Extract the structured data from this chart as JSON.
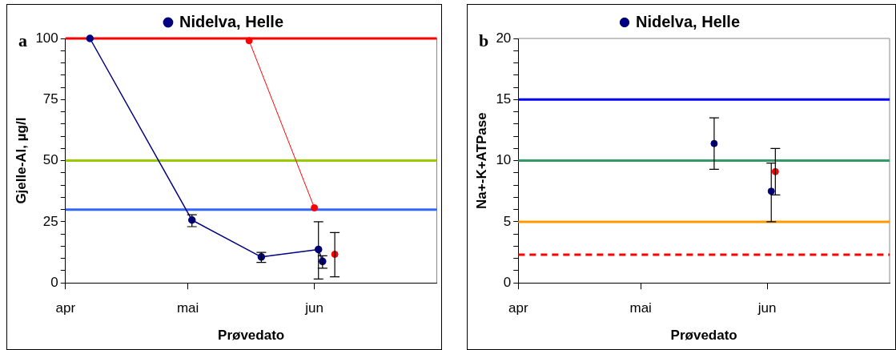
{
  "chart_data": [
    {
      "type": "line",
      "xlabel": "Prøvedato",
      "ylabel": "Gjelle-Al, µg/l",
      "annotations": [
        "a"
      ],
      "legend": "top",
      "grid": false,
      "marker": "circle",
      "xlim": [
        "--04-01",
        "--07-01"
      ],
      "xticks": [
        {
          "value": "--04-01",
          "label": "apr"
        },
        {
          "value": "--05-01",
          "label": "mai"
        },
        {
          "value": "--06-01",
          "label": "jun"
        }
      ],
      "ylim": [
        0,
        100
      ],
      "yticks": [
        0,
        {
          "value": 5,
          "label": null
        },
        {
          "value": 10,
          "label": null
        },
        {
          "value": 15,
          "label": null
        },
        {
          "value": 20,
          "label": null
        },
        25,
        {
          "value": 30,
          "label": null
        },
        {
          "value": 35,
          "label": null
        },
        {
          "value": 40,
          "label": null
        },
        {
          "value": 45,
          "label": null
        },
        50,
        {
          "value": 55,
          "label": null
        },
        {
          "value": 60,
          "label": null
        },
        {
          "value": 65,
          "label": null
        },
        {
          "value": 70,
          "label": null
        },
        75,
        {
          "value": 80,
          "label": null
        },
        {
          "value": 85,
          "label": null
        },
        {
          "value": 90,
          "label": null
        },
        {
          "value": 95,
          "label": null
        },
        100
      ],
      "ref_lines": [
        {
          "axis": "y",
          "value": 100,
          "color": "#ff0000"
        },
        {
          "axis": "y",
          "value": 50,
          "color": "#99cc00"
        },
        {
          "axis": "y",
          "value": 30,
          "color": "#3366ff"
        }
      ],
      "series": [
        {
          "name": "Nidelva, Helle",
          "color": "#000080",
          "x": [
            "--04-07",
            "--05-02",
            "--05-19",
            "--06-02",
            "--06-03"
          ],
          "values": [
            100,
            25.7,
            10.6,
            13.7,
            8.8
          ],
          "errors": [
            null,
            [
              23.0,
              27.9
            ],
            [
              8.4,
              12.5
            ],
            [
              1.6,
              25.0
            ],
            [
              6.0,
              11.1
            ]
          ]
        },
        {
          "color": "#ff0000",
          "x": [
            "--05-16",
            "--06-01"
          ],
          "values": [
            99.1,
            30.7
          ]
        },
        {
          "type": "scatter",
          "color": "#ff0000",
          "x": [
            "--06-06"
          ],
          "values": [
            11.7
          ],
          "errors": [
            [
              2.5,
              20.6
            ]
          ]
        }
      ]
    },
    {
      "type": "scatter",
      "xlabel": "Prøvedato",
      "ylabel": "Na+-K+ATPase",
      "annotations": [
        "b"
      ],
      "legend": "top",
      "grid": false,
      "marker": "circle",
      "xlim": [
        "--04-01",
        "--07-01"
      ],
      "xticks": [
        {
          "value": "--04-01",
          "label": "apr"
        },
        {
          "value": "--05-01",
          "label": "mai"
        },
        {
          "value": "--06-01",
          "label": "jun"
        }
      ],
      "ylim": [
        0,
        20
      ],
      "yticks": [
        0,
        {
          "value": 1,
          "label": null
        },
        {
          "value": 2,
          "label": null
        },
        {
          "value": 3,
          "label": null
        },
        {
          "value": 4,
          "label": null
        },
        5,
        {
          "value": 6,
          "label": null
        },
        {
          "value": 7,
          "label": null
        },
        {
          "value": 8,
          "label": null
        },
        {
          "value": 9,
          "label": null
        },
        10,
        {
          "value": 11,
          "label": null
        },
        {
          "value": 12,
          "label": null
        },
        {
          "value": 13,
          "label": null
        },
        {
          "value": 14,
          "label": null
        },
        15,
        {
          "value": 16,
          "label": null
        },
        {
          "value": 17,
          "label": null
        },
        {
          "value": 18,
          "label": null
        },
        {
          "value": 19,
          "label": null
        },
        20
      ],
      "ref_lines": [
        {
          "axis": "y",
          "value": 15,
          "color": "#0000ff"
        },
        {
          "axis": "y",
          "value": 10,
          "color": "#339966"
        },
        {
          "axis": "y",
          "value": 5,
          "color": "#ff9900"
        },
        {
          "axis": "y",
          "value": 2.3,
          "color": "#ff0000",
          "line_style": "dashed"
        }
      ],
      "series": [
        {
          "name": "Nidelva, Helle",
          "color": "#000080",
          "x": [
            "--05-19",
            "--06-02"
          ],
          "values": [
            11.4,
            7.5
          ],
          "errors": [
            [
              9.3,
              13.5
            ],
            [
              5.0,
              9.8
            ]
          ]
        },
        {
          "color": "#ff0000",
          "x": [
            "--06-03"
          ],
          "values": [
            9.1
          ],
          "errors": [
            [
              7.2,
              11.0
            ]
          ]
        }
      ]
    }
  ]
}
